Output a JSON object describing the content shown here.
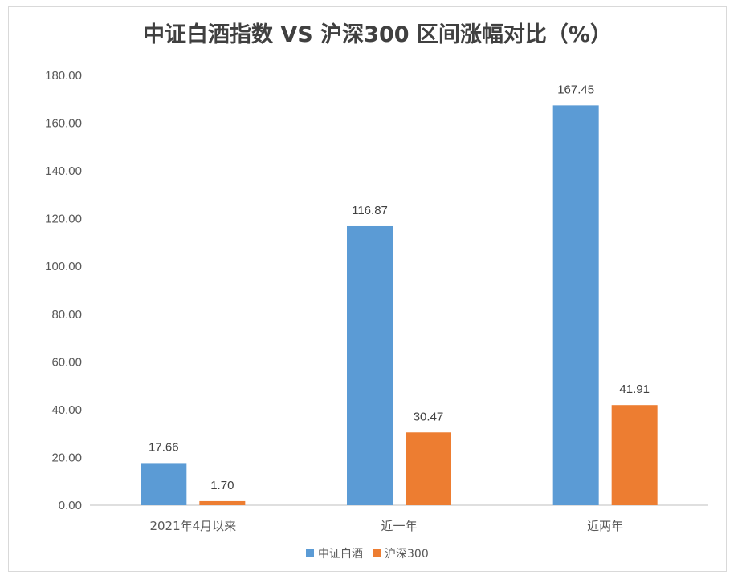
{
  "chart_data": {
    "type": "bar",
    "title": "中证白酒指数 VS 沪深300 区间涨幅对比（%）",
    "categories": [
      "2021年4月以来",
      "近一年",
      "近两年"
    ],
    "series": [
      {
        "name": "中证白酒",
        "values": [
          17.66,
          116.87,
          167.45
        ],
        "labels": [
          "17.66",
          "116.87",
          "167.45"
        ],
        "color": "#5b9bd5"
      },
      {
        "name": "沪深300",
        "values": [
          1.7,
          30.47,
          41.91
        ],
        "labels": [
          "1.70",
          "30.47",
          "41.91"
        ],
        "color": "#ed7d31"
      }
    ],
    "ylim": [
      0,
      180
    ],
    "yticks": [
      "0.00",
      "20.00",
      "40.00",
      "60.00",
      "80.00",
      "100.00",
      "120.00",
      "140.00",
      "160.00",
      "180.00"
    ],
    "grid": false,
    "legend_position": "bottom",
    "xlabel": "",
    "ylabel": ""
  }
}
